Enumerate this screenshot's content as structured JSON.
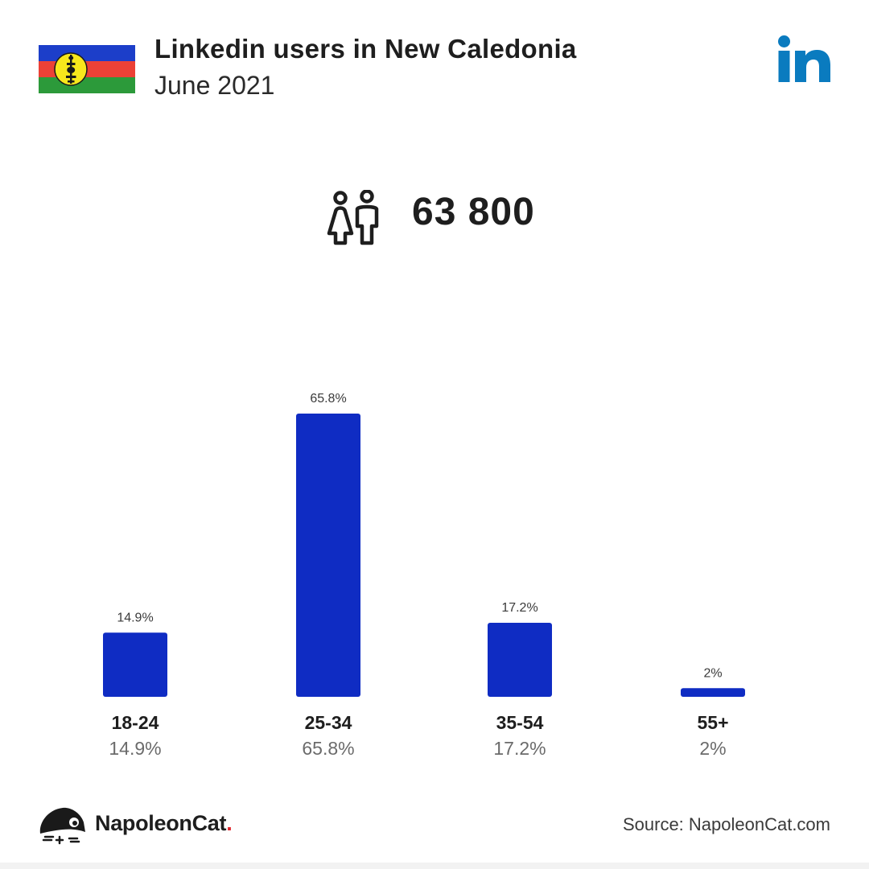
{
  "header": {
    "title": "Linkedin users in New Caledonia",
    "subtitle": "June 2021"
  },
  "icons": {
    "flag": "new-caledonia-flag-icon",
    "platform": "linkedin-logo-icon",
    "users": "people-icon",
    "brand": "napoleoncat-logo-icon"
  },
  "total": {
    "value": "63 800"
  },
  "colors": {
    "bar": "#0f2cc3",
    "linkedin": "#0a7bbf",
    "flag_blue": "#1c3ec9",
    "flag_red": "#ec4136",
    "flag_green": "#2c9a3a",
    "flag_yellow": "#f8e71c"
  },
  "chart_data": {
    "type": "bar",
    "categories": [
      "18-24",
      "25-34",
      "35-54",
      "55+"
    ],
    "values": [
      14.9,
      65.8,
      17.2,
      2
    ],
    "value_labels": [
      "14.9%",
      "65.8%",
      "17.2%",
      "2%"
    ],
    "title": "Linkedin users in New Caledonia",
    "subtitle": "June 2021",
    "xlabel": "",
    "ylabel": "",
    "ylim": [
      0,
      65.8
    ],
    "grid": false,
    "legend": "none"
  },
  "footer": {
    "brand_name": "NapoleonCat",
    "brand_dot": ".",
    "source": "Source: NapoleonCat.com"
  }
}
